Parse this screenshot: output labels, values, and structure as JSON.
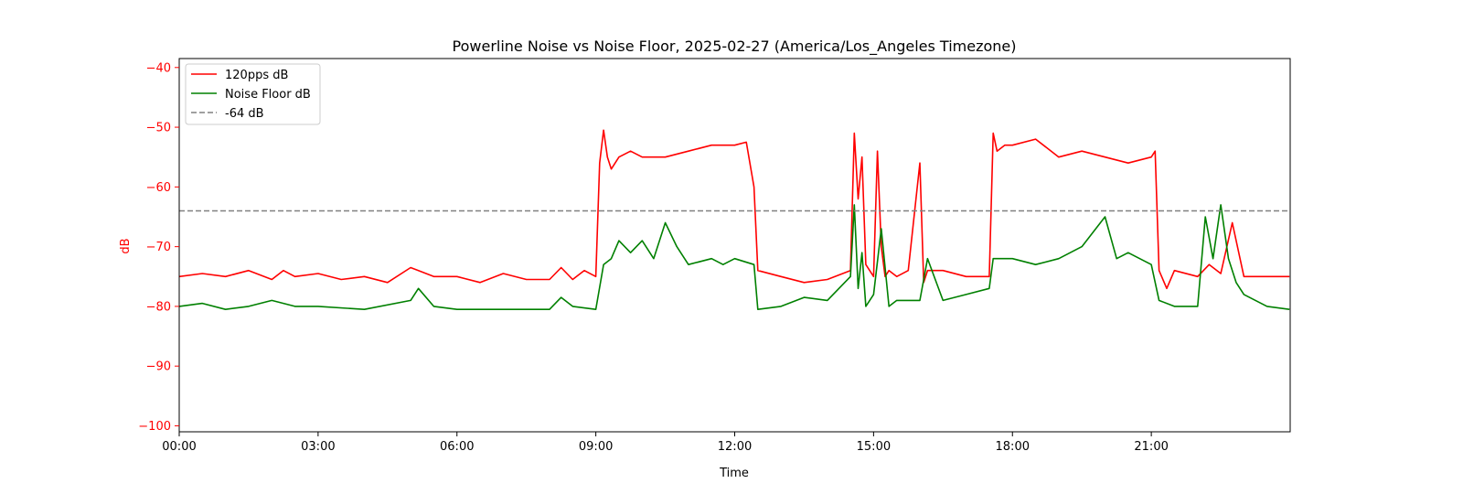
{
  "chart_data": {
    "type": "line",
    "title": "Powerline Noise vs Noise Floor, 2025-02-27 (America/Los_Angeles Timezone)",
    "xlabel": "Time",
    "ylabel": "dB",
    "xlim": [
      "00:00",
      "24:00"
    ],
    "ylim": [
      -101,
      -38.5
    ],
    "x_ticks": [
      "00:00",
      "03:00",
      "06:00",
      "09:00",
      "12:00",
      "15:00",
      "18:00",
      "21:00"
    ],
    "y_ticks": [
      -40,
      -50,
      -60,
      -70,
      -80,
      -90,
      -100
    ],
    "grid": false,
    "legend_position": "upper-left",
    "series": [
      {
        "name": "120pps dB",
        "color": "#ff0000",
        "style": "solid",
        "x": [
          "00:00",
          "00:30",
          "01:00",
          "01:30",
          "02:00",
          "02:15",
          "02:30",
          "03:00",
          "03:30",
          "04:00",
          "04:30",
          "05:00",
          "05:10",
          "05:30",
          "06:00",
          "06:30",
          "07:00",
          "07:30",
          "08:00",
          "08:15",
          "08:30",
          "08:45",
          "09:00",
          "09:05",
          "09:10",
          "09:15",
          "09:20",
          "09:30",
          "09:45",
          "10:00",
          "10:30",
          "11:00",
          "11:30",
          "12:00",
          "12:15",
          "12:25",
          "12:30",
          "13:00",
          "13:30",
          "14:00",
          "14:30",
          "14:35",
          "14:40",
          "14:45",
          "14:50",
          "15:00",
          "15:05",
          "15:10",
          "15:15",
          "15:20",
          "15:30",
          "15:45",
          "16:00",
          "16:05",
          "16:10",
          "16:30",
          "17:00",
          "17:30",
          "17:35",
          "17:40",
          "17:50",
          "18:00",
          "18:30",
          "19:00",
          "19:30",
          "20:00",
          "20:30",
          "21:00",
          "21:05",
          "21:10",
          "21:20",
          "21:30",
          "22:00",
          "22:15",
          "22:30",
          "22:45",
          "23:00",
          "23:15",
          "23:30",
          "23:59"
        ],
        "y": [
          -75,
          -74.5,
          -75,
          -74,
          -75.5,
          -74,
          -75,
          -74.5,
          -75.5,
          -75,
          -76,
          -73.5,
          -74,
          -75,
          -75,
          -76,
          -74.5,
          -75.5,
          -75.5,
          -73.5,
          -75.5,
          -74,
          -75,
          -56,
          -50.5,
          -55,
          -57,
          -55,
          -54,
          -55,
          -55,
          -54,
          -53,
          -53,
          -52.5,
          -60,
          -74,
          -75,
          -76,
          -75.5,
          -74,
          -51,
          -62,
          -55,
          -73,
          -75,
          -54,
          -70,
          -75,
          -74,
          -75,
          -74,
          -56,
          -76,
          -74,
          -74,
          -75,
          -75,
          -51,
          -54,
          -53,
          -53,
          -52,
          -55,
          -54,
          -55,
          -56,
          -55,
          -54,
          -74,
          -77,
          -74,
          -75,
          -73,
          -74.5,
          -66,
          -75,
          -75,
          -75,
          -75
        ]
      },
      {
        "name": "Noise Floor dB",
        "color": "#008000",
        "style": "solid",
        "x": [
          "00:00",
          "00:30",
          "01:00",
          "01:30",
          "02:00",
          "02:30",
          "03:00",
          "04:00",
          "05:00",
          "05:10",
          "05:30",
          "06:00",
          "07:00",
          "08:00",
          "08:15",
          "08:30",
          "09:00",
          "09:10",
          "09:20",
          "09:30",
          "09:45",
          "10:00",
          "10:15",
          "10:30",
          "10:45",
          "11:00",
          "11:30",
          "11:45",
          "12:00",
          "12:25",
          "12:30",
          "13:00",
          "13:30",
          "14:00",
          "14:30",
          "14:35",
          "14:40",
          "14:45",
          "14:50",
          "15:00",
          "15:10",
          "15:20",
          "15:30",
          "16:00",
          "16:10",
          "16:30",
          "17:00",
          "17:30",
          "17:35",
          "18:00",
          "18:30",
          "19:00",
          "19:30",
          "20:00",
          "20:15",
          "20:30",
          "21:00",
          "21:10",
          "21:30",
          "22:00",
          "22:10",
          "22:20",
          "22:30",
          "22:40",
          "22:50",
          "23:00",
          "23:30",
          "23:59"
        ],
        "y": [
          -80,
          -79.5,
          -80.5,
          -80,
          -79,
          -80,
          -80,
          -80.5,
          -79,
          -77,
          -80,
          -80.5,
          -80.5,
          -80.5,
          -78.5,
          -80,
          -80.5,
          -73,
          -72,
          -69,
          -71,
          -69,
          -72,
          -66,
          -70,
          -73,
          -72,
          -73,
          -72,
          -73,
          -80.5,
          -80,
          -78.5,
          -79,
          -75,
          -63,
          -77,
          -71,
          -80,
          -78,
          -67,
          -80,
          -79,
          -79,
          -72,
          -79,
          -78,
          -77,
          -72,
          -72,
          -73,
          -72,
          -70,
          -65,
          -72,
          -71,
          -73,
          -79,
          -80,
          -80,
          -65,
          -72,
          -63,
          -72,
          -76,
          -78,
          -80,
          -80.5
        ]
      },
      {
        "name": "-64 dB",
        "color": "#808080",
        "style": "dashed",
        "x": [
          "00:00",
          "24:00"
        ],
        "y": [
          -64,
          -64
        ]
      }
    ]
  }
}
